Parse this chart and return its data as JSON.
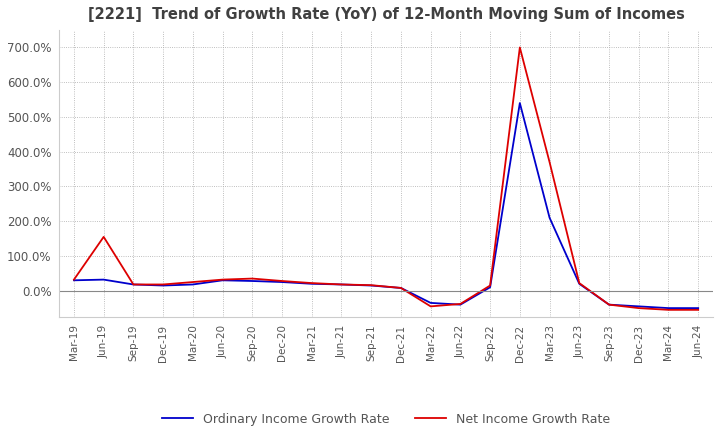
{
  "title": "[2221]  Trend of Growth Rate (YoY) of 12-Month Moving Sum of Incomes",
  "title_color": "#404040",
  "background_color": "#ffffff",
  "grid_color": "#aaaaaa",
  "ordinary_color": "#0000cc",
  "net_color": "#dd0000",
  "ordinary_label": "Ordinary Income Growth Rate",
  "net_label": "Net Income Growth Rate",
  "ylim_pct": [
    -75,
    750
  ],
  "yticks_pct": [
    0,
    100,
    200,
    300,
    400,
    500,
    600,
    700
  ],
  "dates": [
    "Mar-19",
    "Jun-19",
    "Sep-19",
    "Dec-19",
    "Mar-20",
    "Jun-20",
    "Sep-20",
    "Dec-20",
    "Mar-21",
    "Jun-21",
    "Sep-21",
    "Dec-21",
    "Mar-22",
    "Jun-22",
    "Sep-22",
    "Dec-22",
    "Mar-23",
    "Jun-23",
    "Sep-23",
    "Dec-23",
    "Mar-24",
    "Jun-24"
  ],
  "ordinary_values_pct": [
    30,
    32,
    18,
    15,
    18,
    30,
    28,
    25,
    20,
    18,
    15,
    8,
    -35,
    -40,
    10,
    540,
    210,
    20,
    -40,
    -45,
    -50,
    -50
  ],
  "net_values_pct": [
    32,
    155,
    18,
    18,
    25,
    32,
    35,
    28,
    22,
    18,
    16,
    8,
    -45,
    -38,
    15,
    700,
    370,
    22,
    -40,
    -50,
    -55,
    -55
  ]
}
